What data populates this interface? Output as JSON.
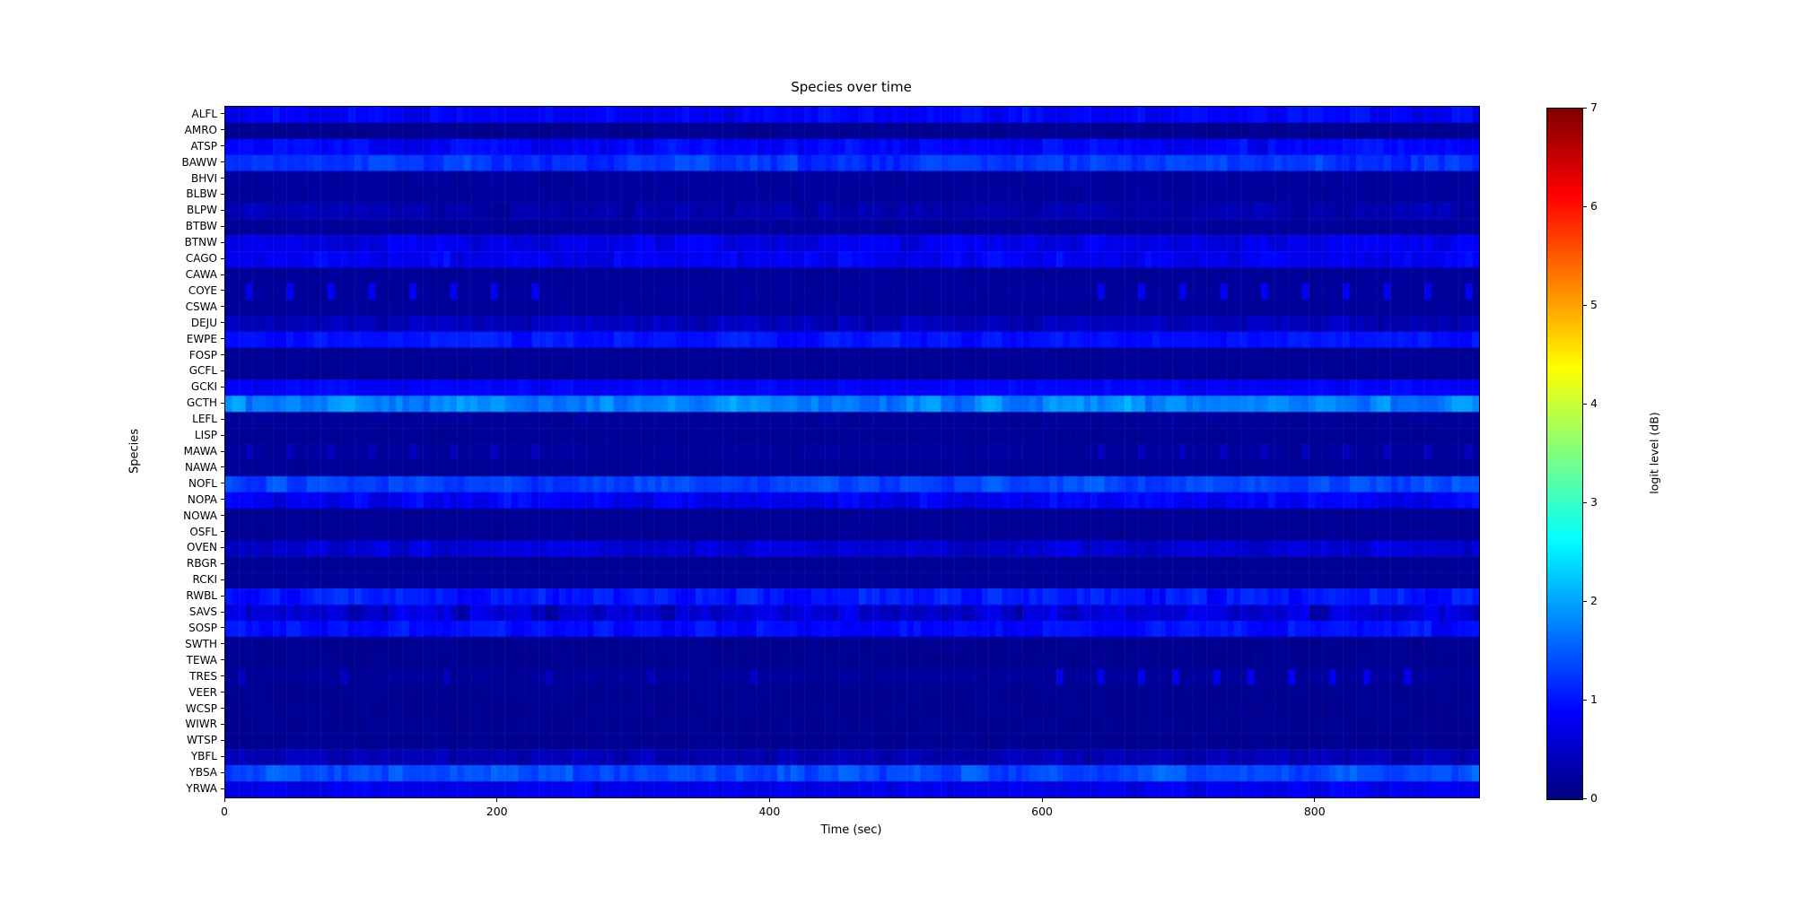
{
  "figure": {
    "title": "Species over time",
    "xlabel": "Time (sec)",
    "ylabel": "Species",
    "background": "#ffffff",
    "text_color": "#000000"
  },
  "chart_data": {
    "type": "heatmap",
    "title": "Species over time",
    "xlabel": "Time (sec)",
    "ylabel": "Species",
    "x_range": [
      0,
      920
    ],
    "x_ticks": [
      0,
      200,
      400,
      600,
      800
    ],
    "bin_seconds": 5,
    "colormap": "jet",
    "grid": false,
    "colorbar": {
      "label": "logit level (dB)",
      "ticks": [
        0,
        1,
        2,
        3,
        4,
        5,
        6,
        7
      ],
      "range": [
        0,
        7
      ],
      "position": "right"
    },
    "value_units": "logit level (dB)",
    "rows": [
      {
        "species": "ALFL",
        "mean": 0.85,
        "var": 0.18
      },
      {
        "species": "AMRO",
        "mean": 0.12,
        "var": 0.04
      },
      {
        "species": "ATSP",
        "mean": 0.85,
        "var": 0.2
      },
      {
        "species": "BAWW",
        "mean": 1.25,
        "var": 0.22
      },
      {
        "species": "BHVI",
        "mean": 0.2,
        "var": 0.05
      },
      {
        "species": "BLBW",
        "mean": 0.2,
        "var": 0.05
      },
      {
        "species": "BLPW",
        "mean": 0.32,
        "var": 0.14
      },
      {
        "species": "BTBW",
        "mean": 0.18,
        "var": 0.04
      },
      {
        "species": "BTNW",
        "mean": 0.7,
        "var": 0.18
      },
      {
        "species": "CAGO",
        "mean": 0.8,
        "var": 0.2
      },
      {
        "species": "CAWA",
        "mean": 0.18,
        "var": 0.04
      },
      {
        "species": "COYE",
        "mean": 0.2,
        "var": 0.04,
        "spikes": [
          {
            "start": 15,
            "end": 225,
            "period": 30,
            "level": 0.8
          },
          {
            "start": 640,
            "end": 920,
            "period": 30,
            "level": 0.8
          }
        ]
      },
      {
        "species": "CSWA",
        "mean": 0.18,
        "var": 0.04
      },
      {
        "species": "DEJU",
        "mean": 0.4,
        "var": 0.16
      },
      {
        "species": "EWPE",
        "mean": 1.0,
        "var": 0.15
      },
      {
        "species": "FOSP",
        "mean": 0.15,
        "var": 0.03
      },
      {
        "species": "GCFL",
        "mean": 0.15,
        "var": 0.03
      },
      {
        "species": "GCKI",
        "mean": 0.85,
        "var": 0.12
      },
      {
        "species": "GCTH",
        "mean": 1.8,
        "var": 0.3
      },
      {
        "species": "LEFL",
        "mean": 0.18,
        "var": 0.04
      },
      {
        "species": "LISP",
        "mean": 0.15,
        "var": 0.03
      },
      {
        "species": "MAWA",
        "mean": 0.2,
        "var": 0.04,
        "spikes": [
          {
            "start": 15,
            "end": 225,
            "period": 30,
            "level": 0.45
          },
          {
            "start": 640,
            "end": 920,
            "period": 30,
            "level": 0.45
          }
        ]
      },
      {
        "species": "NAWA",
        "mean": 0.15,
        "var": 0.03
      },
      {
        "species": "NOFL",
        "mean": 1.35,
        "var": 0.2
      },
      {
        "species": "NOPA",
        "mean": 0.8,
        "var": 0.22
      },
      {
        "species": "NOWA",
        "mean": 0.15,
        "var": 0.03
      },
      {
        "species": "OSFL",
        "mean": 0.15,
        "var": 0.03
      },
      {
        "species": "OVEN",
        "mean": 0.6,
        "var": 0.2
      },
      {
        "species": "RBGR",
        "mean": 0.15,
        "var": 0.03
      },
      {
        "species": "RCKI",
        "mean": 0.15,
        "var": 0.03
      },
      {
        "species": "RWBL",
        "mean": 1.05,
        "var": 0.22
      },
      {
        "species": "SAVS",
        "mean": 0.55,
        "var": 0.3
      },
      {
        "species": "SOSP",
        "mean": 0.95,
        "var": 0.18
      },
      {
        "species": "SWTH",
        "mean": 0.12,
        "var": 0.03
      },
      {
        "species": "TEWA",
        "mean": 0.12,
        "var": 0.03
      },
      {
        "species": "TRES",
        "mean": 0.18,
        "var": 0.04,
        "spikes": [
          {
            "start": 10,
            "end": 440,
            "period": 75,
            "level": 0.45
          },
          {
            "start": 610,
            "end": 880,
            "period": 28,
            "level": 0.75
          }
        ]
      },
      {
        "species": "VEER",
        "mean": 0.12,
        "var": 0.03
      },
      {
        "species": "WCSP",
        "mean": 0.12,
        "var": 0.03
      },
      {
        "species": "WIWR",
        "mean": 0.12,
        "var": 0.03
      },
      {
        "species": "WTSP",
        "mean": 0.12,
        "var": 0.03
      },
      {
        "species": "YBFL",
        "mean": 0.35,
        "var": 0.15
      },
      {
        "species": "YBSA",
        "mean": 1.4,
        "var": 0.25
      },
      {
        "species": "YRWA",
        "mean": 0.75,
        "var": 0.15
      }
    ]
  }
}
